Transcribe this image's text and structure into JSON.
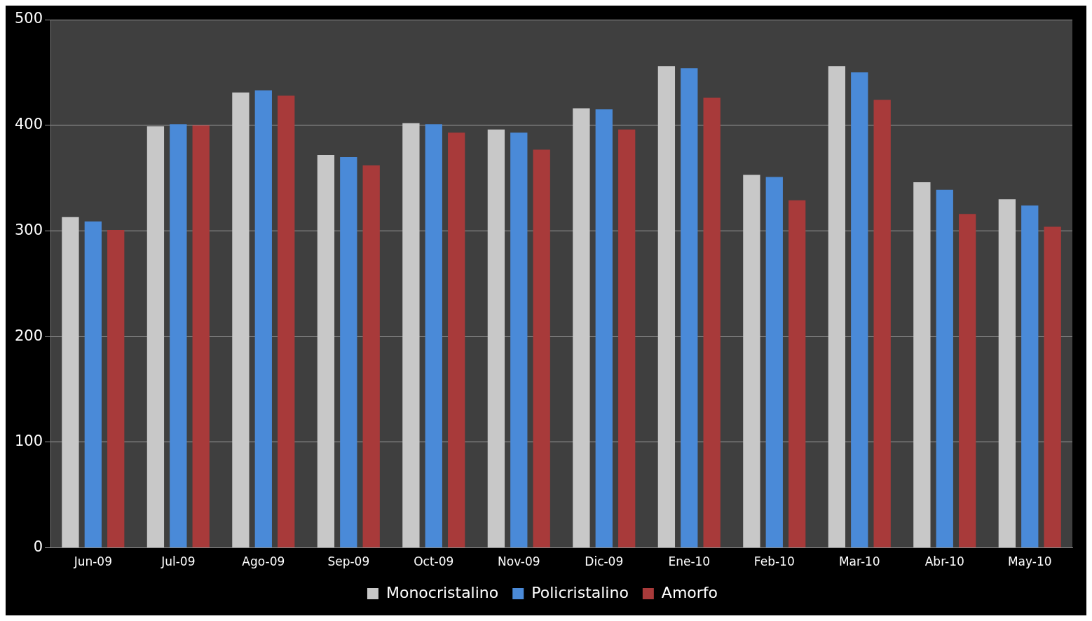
{
  "chart_data": {
    "type": "bar",
    "categories": [
      "Jun-09",
      "Jul-09",
      "Ago-09",
      "Sep-09",
      "Oct-09",
      "Nov-09",
      "Dic-09",
      "Ene-10",
      "Feb-10",
      "Mar-10",
      "Abr-10",
      "May-10"
    ],
    "series": [
      {
        "name": "Monocristalino",
        "color": "#c8c8c8",
        "values": [
          313,
          399,
          431,
          372,
          402,
          396,
          416,
          456,
          353,
          456,
          346,
          330
        ]
      },
      {
        "name": "Policristalino",
        "color": "#4a8ad8",
        "values": [
          309,
          401,
          433,
          370,
          401,
          393,
          415,
          454,
          351,
          450,
          339,
          324
        ]
      },
      {
        "name": "Amorfo",
        "color": "#a83a3a",
        "values": [
          301,
          400,
          428,
          362,
          393,
          377,
          396,
          426,
          329,
          424,
          316,
          304
        ]
      }
    ],
    "ylim": [
      0,
      500
    ],
    "yticks": [
      0,
      100,
      200,
      300,
      400,
      500
    ],
    "grid": "y",
    "legend": "bottom"
  }
}
